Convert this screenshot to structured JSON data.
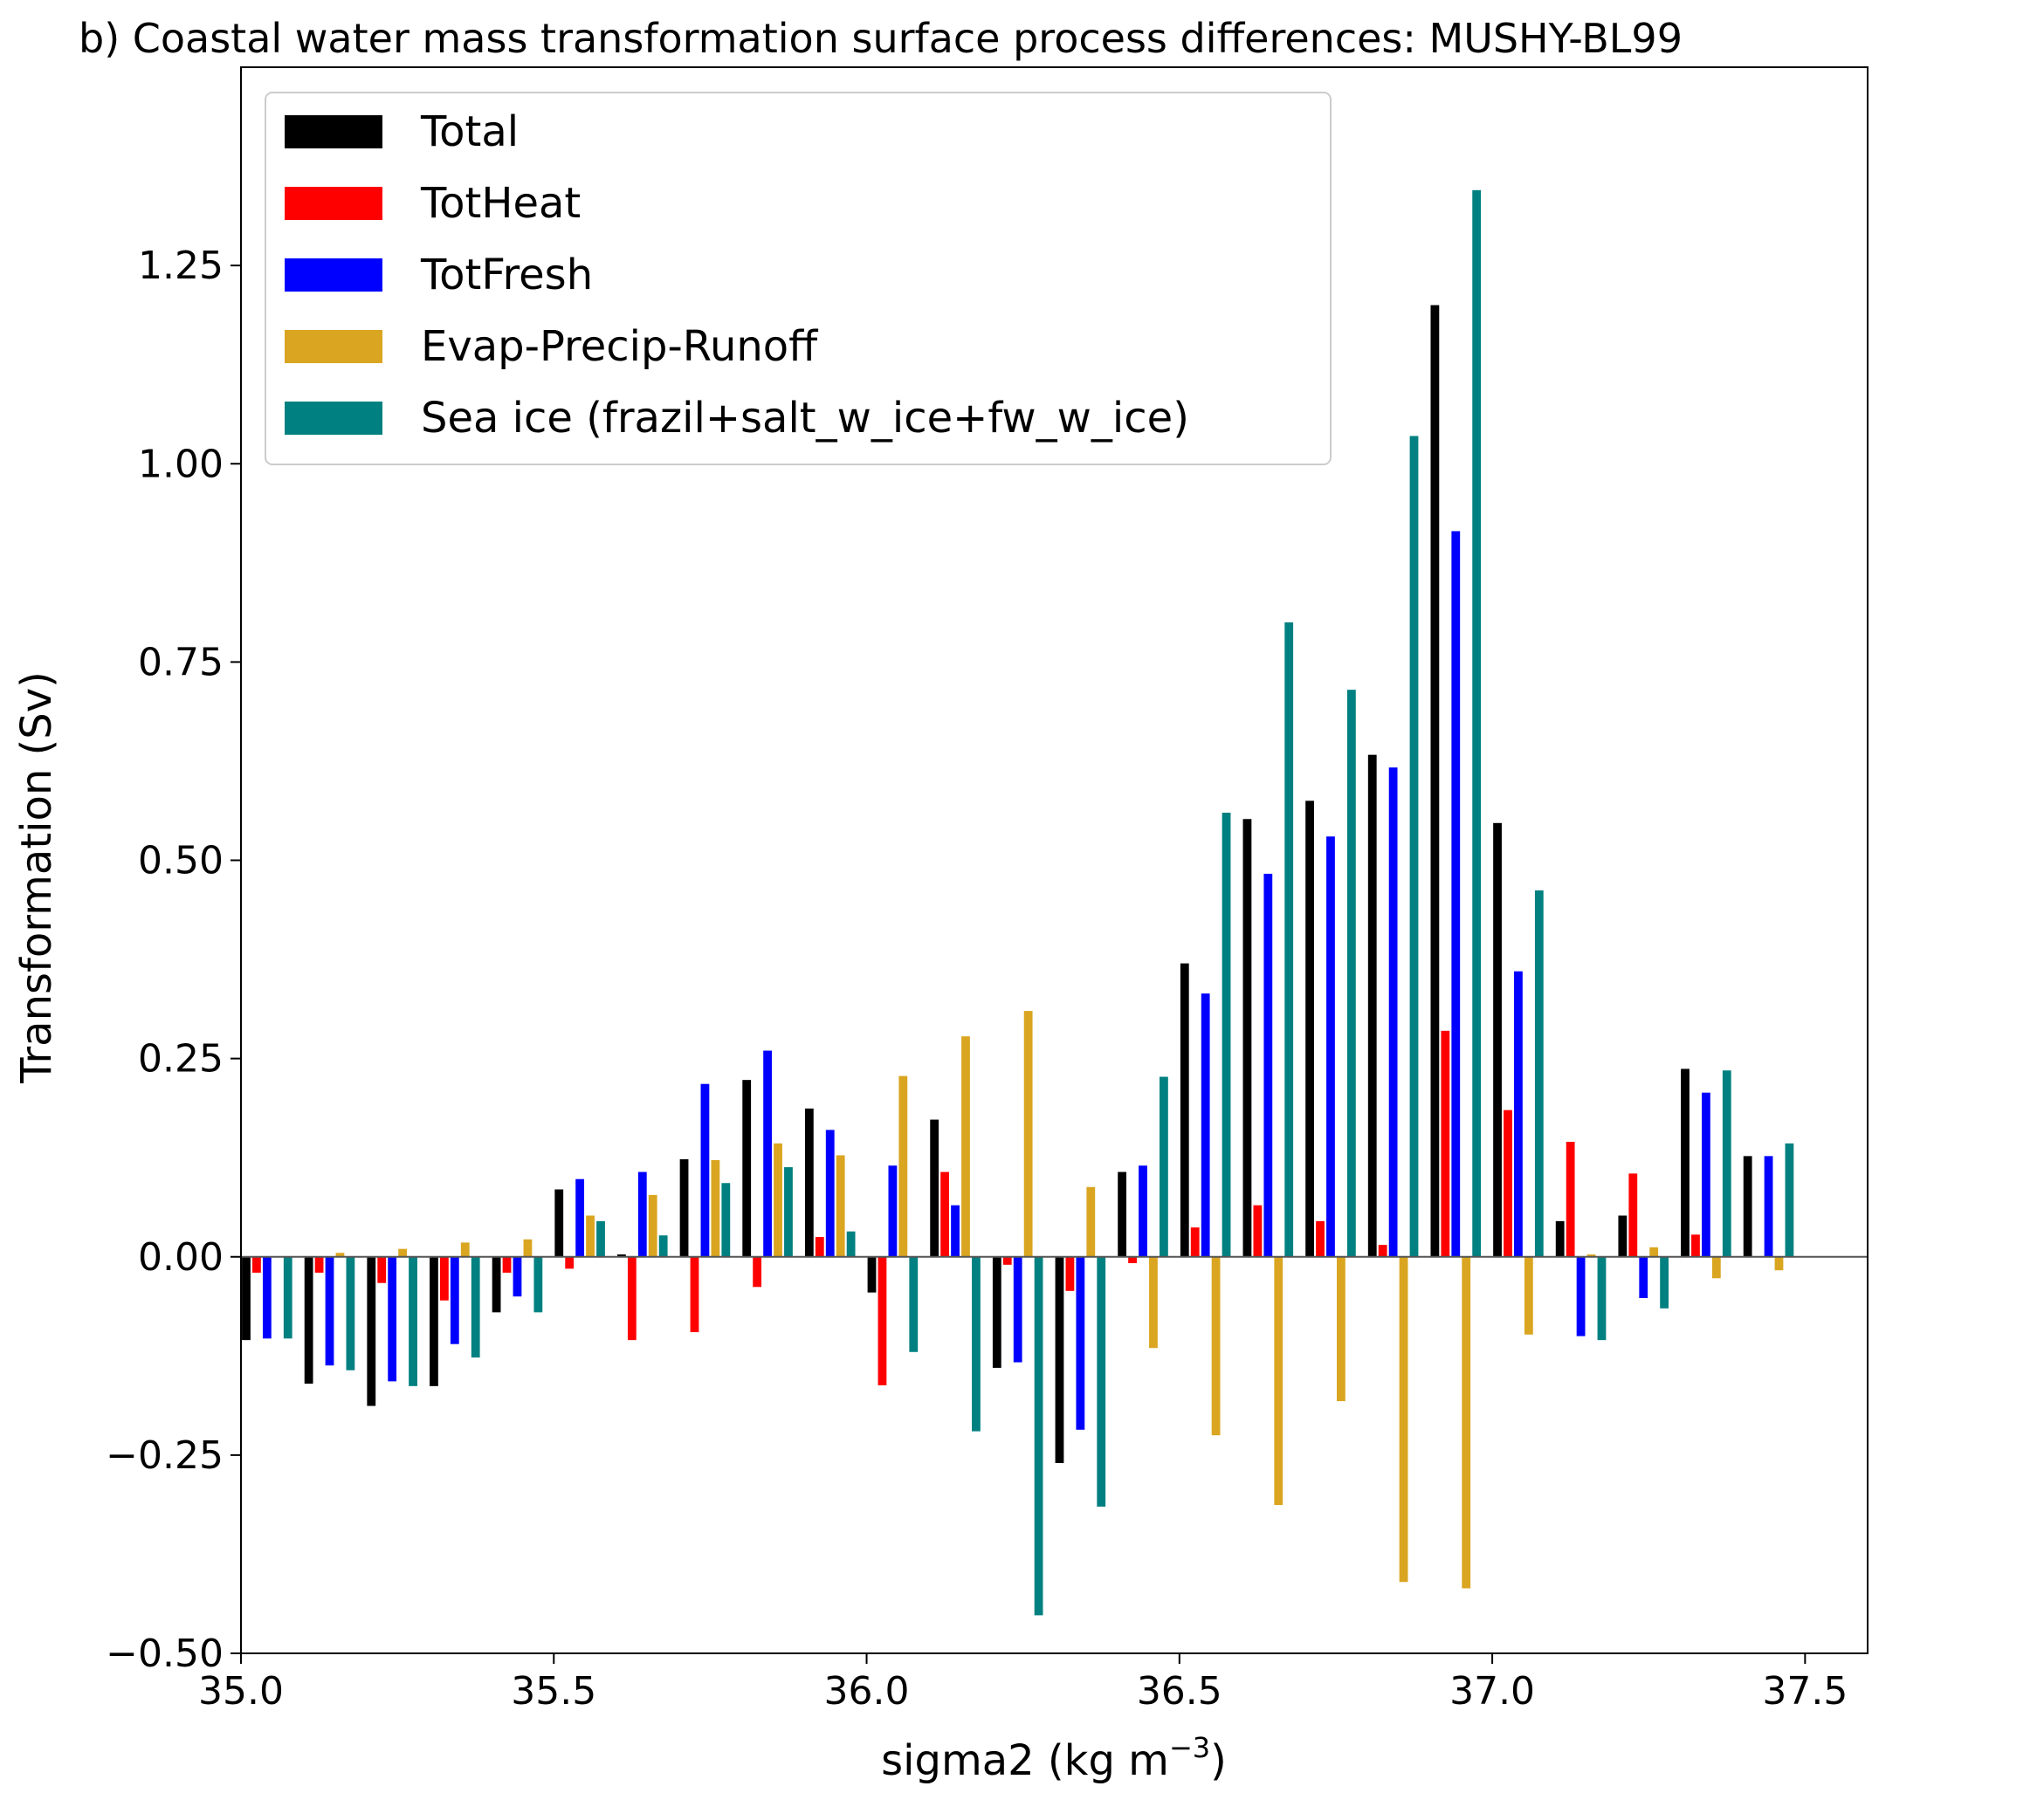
{
  "chart_data": {
    "type": "bar",
    "title": "b) Coastal water mass transformation surface process differences: MUSHY-BL99",
    "xlabel_base": "sigma2 (kg m",
    "xlabel_sup": "−3",
    "xlabel_end": ")",
    "ylabel": "Transformation (Sv)",
    "xlim": [
      35.0,
      37.6
    ],
    "ylim": [
      -0.5,
      1.5
    ],
    "xticks": [
      35.0,
      35.5,
      36.0,
      36.5,
      37.0,
      37.5
    ],
    "xtick_labels": [
      "35.0",
      "35.5",
      "36.0",
      "36.5",
      "37.0",
      "37.5"
    ],
    "yticks": [
      -0.5,
      -0.25,
      0.0,
      0.25,
      0.5,
      0.75,
      1.0,
      1.25
    ],
    "ytick_labels": [
      "−0.50",
      "−0.25",
      "0.00",
      "0.25",
      "0.50",
      "0.75",
      "1.00",
      "1.25"
    ],
    "grid": false,
    "legend_position": "top-left",
    "zero_line": true,
    "bin_start": 35.0,
    "bin_width": 0.1,
    "x": [
      35.0,
      35.1,
      35.2,
      35.3,
      35.4,
      35.5,
      35.6,
      35.7,
      35.8,
      35.9,
      36.0,
      36.1,
      36.2,
      36.3,
      36.4,
      36.5,
      36.6,
      36.7,
      36.8,
      36.9,
      37.0,
      37.1,
      37.2,
      37.3,
      37.4
    ],
    "series": [
      {
        "name": "Total",
        "color": "#000000",
        "values": [
          -0.105,
          -0.16,
          -0.188,
          -0.163,
          -0.07,
          0.085,
          0.003,
          0.123,
          0.223,
          0.187,
          -0.045,
          0.173,
          -0.14,
          -0.26,
          0.107,
          0.37,
          0.552,
          0.575,
          0.633,
          1.2,
          0.547,
          0.045,
          0.052,
          0.237,
          0.127
        ]
      },
      {
        "name": "TotHeat",
        "color": "#ff0000",
        "values": [
          -0.02,
          -0.02,
          -0.033,
          -0.055,
          -0.02,
          -0.015,
          -0.105,
          -0.095,
          -0.038,
          0.025,
          -0.162,
          0.107,
          -0.01,
          -0.043,
          -0.008,
          0.037,
          0.065,
          0.045,
          0.015,
          0.285,
          0.185,
          0.145,
          0.105,
          0.028,
          0.0
        ]
      },
      {
        "name": "TotFresh",
        "color": "#0000ff",
        "values": [
          -0.103,
          -0.137,
          -0.157,
          -0.11,
          -0.05,
          0.098,
          0.107,
          0.218,
          0.26,
          0.16,
          0.115,
          0.065,
          -0.133,
          -0.218,
          0.115,
          0.332,
          0.483,
          0.53,
          0.617,
          0.915,
          0.36,
          -0.1,
          -0.052,
          0.207,
          0.127
        ]
      },
      {
        "name": "Evap-Precip-Runoff",
        "color": "#daa520",
        "values": [
          0.0,
          0.005,
          0.01,
          0.018,
          0.022,
          0.052,
          0.078,
          0.122,
          0.143,
          0.128,
          0.228,
          0.278,
          0.31,
          0.088,
          -0.115,
          -0.225,
          -0.313,
          -0.182,
          -0.41,
          -0.418,
          -0.098,
          0.003,
          0.012,
          -0.027,
          -0.017
        ]
      },
      {
        "name": "Sea ice (frazil+salt_w_ice+fw_w_ice)",
        "color": "#008080",
        "values": [
          -0.103,
          -0.143,
          -0.163,
          -0.127,
          -0.07,
          0.045,
          0.027,
          0.093,
          0.113,
          0.032,
          -0.12,
          -0.22,
          -0.452,
          -0.315,
          0.227,
          0.56,
          0.8,
          0.715,
          1.035,
          1.345,
          0.462,
          -0.105,
          -0.065,
          0.235,
          0.143
        ]
      }
    ]
  }
}
